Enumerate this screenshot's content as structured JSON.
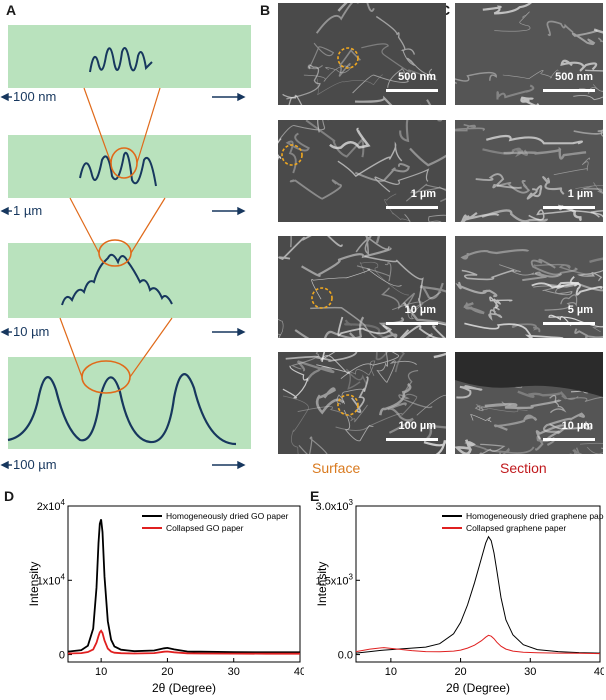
{
  "panels": {
    "a": "A",
    "b": "B",
    "c": "C",
    "d": "D",
    "e": "E"
  },
  "schematic": {
    "scales": [
      "100 nm",
      "1 µm",
      "10 µm",
      "100 µm"
    ]
  },
  "sem": {
    "surface_scalebars": [
      "500 nm",
      "1 µm",
      "10 µm",
      "100 µm"
    ],
    "section_scalebars": [
      "500 nm",
      "1 µm",
      "5 µm",
      "10 µm"
    ],
    "surface_caption": "Surface",
    "section_caption": "Section"
  },
  "colors": {
    "band": "#b9e2bd",
    "wave": "#17375e",
    "zoom": "#e06a1a",
    "surface_caption": "#d97a1f",
    "section_caption": "#c0191d",
    "series_black": "#000000",
    "series_red": "#e02020"
  },
  "chart_data": [
    {
      "type": "line",
      "xlabel": "2θ (Degree)",
      "ylabel": "Intensity",
      "xlim": [
        5,
        40
      ],
      "ylim": [
        -1000,
        20000
      ],
      "xticks": [
        "10",
        "20",
        "30",
        "40"
      ],
      "yticks": [
        {
          "value": 0,
          "label": "0"
        },
        {
          "value": 10000,
          "label": "1x10^4"
        },
        {
          "value": 20000,
          "label": "2x10^4"
        }
      ],
      "legend_position": "top-right",
      "series": [
        {
          "name": "Homogeneously dried GO paper",
          "color": "#000000",
          "x": [
            5,
            7,
            8,
            8.8,
            9.3,
            9.6,
            9.8,
            10,
            10.2,
            10.5,
            11,
            11.5,
            12,
            13,
            15,
            18,
            19.5,
            20,
            21,
            23,
            25,
            30,
            35,
            40
          ],
          "y": [
            400,
            600,
            1200,
            3500,
            9000,
            15000,
            17600,
            18200,
            16500,
            10500,
            4500,
            2000,
            1100,
            650,
            450,
            550,
            850,
            900,
            700,
            420,
            380,
            320,
            300,
            300
          ]
        },
        {
          "name": "Collapsed GO paper",
          "color": "#e02020",
          "x": [
            5,
            7,
            8,
            8.8,
            9.3,
            9.6,
            9.8,
            10,
            10.2,
            10.5,
            11,
            11.5,
            12,
            13,
            15,
            18,
            19.5,
            20,
            21,
            23,
            25,
            30,
            35,
            40
          ],
          "y": [
            150,
            200,
            350,
            700,
            1600,
            2500,
            3000,
            3200,
            2900,
            1900,
            800,
            400,
            250,
            180,
            150,
            200,
            380,
            420,
            300,
            170,
            150,
            130,
            120,
            120
          ]
        }
      ]
    },
    {
      "type": "line",
      "xlabel": "2θ (Degree)",
      "ylabel": "Intensity",
      "xlim": [
        5,
        40
      ],
      "ylim": [
        -150,
        3000
      ],
      "xticks": [
        "10",
        "20",
        "30",
        "40"
      ],
      "yticks": [
        {
          "value": 0,
          "label": "0.0"
        },
        {
          "value": 1500,
          "label": "1.5x10^3"
        },
        {
          "value": 3000,
          "label": "3.0x10^3"
        }
      ],
      "legend_position": "top-right",
      "series": [
        {
          "name": "Homogeneously dried graphene paper",
          "color": "#000000",
          "x": [
            5,
            7,
            9,
            11,
            13,
            15,
            17,
            19,
            20,
            21,
            22,
            23,
            23.6,
            24,
            24.4,
            24.8,
            25.2,
            25.8,
            26.5,
            27.5,
            29,
            31,
            34,
            37,
            40
          ],
          "y": [
            30,
            60,
            90,
            110,
            130,
            150,
            220,
            420,
            650,
            1000,
            1450,
            1950,
            2250,
            2380,
            2300,
            2050,
            1700,
            1150,
            700,
            400,
            200,
            100,
            60,
            40,
            30
          ]
        },
        {
          "name": "Collapsed graphene paper",
          "color": "#e02020",
          "x": [
            5,
            7,
            9,
            11,
            13,
            15,
            17,
            19,
            20,
            21,
            22,
            23,
            23.6,
            24,
            24.4,
            24.8,
            25.2,
            25.8,
            26.5,
            27.5,
            29,
            31,
            34,
            37,
            40
          ],
          "y": [
            60,
            110,
            140,
            110,
            80,
            60,
            55,
            70,
            90,
            130,
            190,
            280,
            350,
            390,
            370,
            320,
            250,
            170,
            110,
            70,
            45,
            35,
            30,
            25,
            20
          ]
        }
      ]
    }
  ]
}
